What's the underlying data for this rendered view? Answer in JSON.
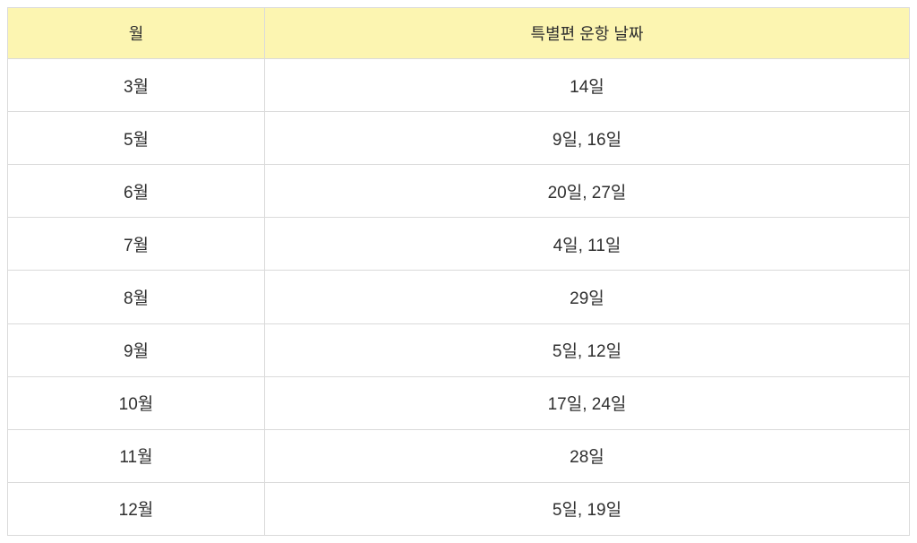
{
  "colors": {
    "header_bg": "#fcf5b1",
    "border": "#dadada",
    "text": "#2f2f2f"
  },
  "table": {
    "columns": [
      {
        "label": "월"
      },
      {
        "label": "특별편 운항 날짜"
      }
    ],
    "rows": [
      {
        "month": "3월",
        "dates": "14일"
      },
      {
        "month": "5월",
        "dates": "9일, 16일"
      },
      {
        "month": "6월",
        "dates": "20일, 27일"
      },
      {
        "month": "7월",
        "dates": "4일, 11일"
      },
      {
        "month": "8월",
        "dates": "29일"
      },
      {
        "month": "9월",
        "dates": "5일, 12일"
      },
      {
        "month": "10월",
        "dates": "17일, 24일"
      },
      {
        "month": "11월",
        "dates": "28일"
      },
      {
        "month": "12월",
        "dates": "5일, 19일"
      }
    ]
  }
}
